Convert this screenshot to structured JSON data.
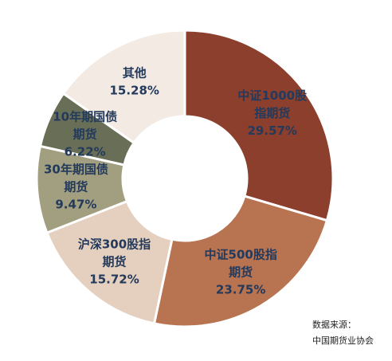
{
  "chart_data": {
    "type": "pie",
    "donut": true,
    "title": "",
    "slices": [
      {
        "label_lines": [
          "中证1000股",
          "指期货"
        ],
        "value": 29.57,
        "value_text": "29.57%",
        "color": "#8b3f2c"
      },
      {
        "label_lines": [
          "中证500股指",
          "期货"
        ],
        "value": 23.75,
        "value_text": "23.75%",
        "color": "#b87351"
      },
      {
        "label_lines": [
          "沪深300股指",
          "期货"
        ],
        "value": 15.72,
        "value_text": "15.72%",
        "color": "#e5cfbe"
      },
      {
        "label_lines": [
          "30年期国债",
          "期货"
        ],
        "value": 9.47,
        "value_text": "9.47%",
        "color": "#a19f80"
      },
      {
        "label_lines": [
          "10年期国债",
          "期货"
        ],
        "value": 6.22,
        "value_text": "6.22%",
        "color": "#686f56"
      },
      {
        "label_lines": [
          "其他"
        ],
        "value": 15.28,
        "value_text": "15.28%",
        "color": "#f3ebe3"
      }
    ],
    "start_angle_deg": 0,
    "direction": "clockwise"
  },
  "source": {
    "line1": "数据来源：",
    "line2": "中国期货业协会"
  }
}
